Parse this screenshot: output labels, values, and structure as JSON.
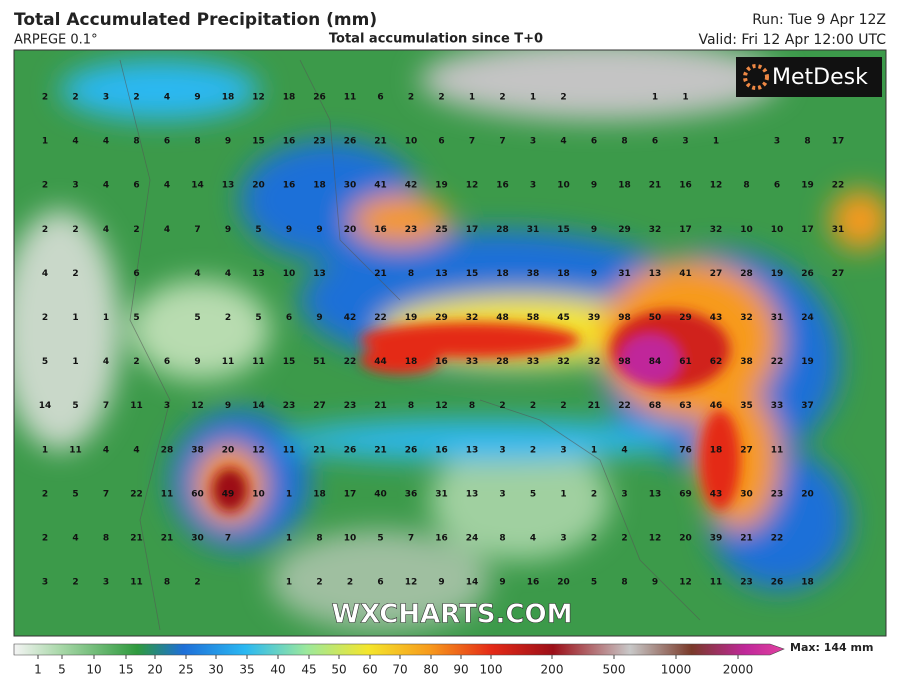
{
  "header": {
    "title": "Total Accumulated Precipitation (mm)",
    "model": "ARPEGE 0.1°",
    "subtitle": "Total accumulation since T+0",
    "run": "Run: Tue 9 Apr 12Z",
    "valid": "Valid: Fri 12 Apr 12:00 UTC"
  },
  "logo": "MetDesk",
  "watermark": "WXCHARTS.COM",
  "colorbar": {
    "labels": [
      1,
      5,
      10,
      15,
      20,
      25,
      30,
      35,
      40,
      45,
      50,
      60,
      70,
      80,
      90,
      100,
      200,
      500,
      1000,
      2000
    ],
    "max": "Max: 144 mm"
  },
  "grid": {
    "rows": [
      [
        2,
        2,
        3,
        2,
        4,
        9,
        18,
        12,
        18,
        26,
        11,
        6,
        2,
        2,
        1,
        2,
        1,
        2,
        null,
        null,
        1,
        1,
        null,
        null,
        null,
        null,
        null
      ],
      [
        1,
        4,
        4,
        8,
        6,
        8,
        9,
        15,
        16,
        23,
        26,
        21,
        10,
        6,
        7,
        7,
        3,
        4,
        6,
        8,
        6,
        3,
        1,
        null,
        3,
        8,
        17
      ],
      [
        2,
        3,
        4,
        6,
        4,
        14,
        13,
        20,
        16,
        18,
        30,
        41,
        42,
        19,
        12,
        16,
        3,
        10,
        9,
        18,
        21,
        16,
        12,
        8,
        6,
        19,
        22
      ],
      [
        2,
        2,
        4,
        2,
        4,
        7,
        9,
        5,
        9,
        9,
        20,
        16,
        23,
        25,
        17,
        28,
        31,
        15,
        9,
        29,
        32,
        17,
        32,
        10,
        10,
        17,
        31
      ],
      [
        4,
        2,
        null,
        6,
        null,
        4,
        4,
        13,
        10,
        13,
        null,
        21,
        8,
        13,
        15,
        18,
        38,
        18,
        9,
        31,
        13,
        41,
        27,
        28,
        19,
        26,
        27
      ],
      [
        2,
        1,
        1,
        5,
        null,
        5,
        2,
        5,
        6,
        9,
        42,
        22,
        19,
        29,
        32,
        48,
        58,
        45,
        39,
        98,
        50,
        29,
        43,
        32,
        31,
        24,
        null
      ],
      [
        5,
        1,
        4,
        2,
        6,
        9,
        11,
        11,
        15,
        51,
        22,
        44,
        18,
        16,
        33,
        28,
        33,
        32,
        32,
        98,
        84,
        61,
        62,
        38,
        22,
        19,
        null
      ],
      [
        14,
        5,
        7,
        11,
        3,
        12,
        9,
        14,
        23,
        27,
        23,
        21,
        8,
        12,
        8,
        2,
        2,
        2,
        21,
        22,
        68,
        63,
        46,
        35,
        33,
        37,
        null
      ],
      [
        1,
        11,
        4,
        4,
        28,
        38,
        20,
        12,
        11,
        21,
        26,
        21,
        26,
        16,
        13,
        3,
        2,
        3,
        1,
        4,
        null,
        76,
        18,
        27,
        11,
        null,
        null
      ],
      [
        2,
        5,
        7,
        22,
        11,
        60,
        49,
        10,
        1,
        18,
        17,
        40,
        36,
        31,
        13,
        3,
        5,
        1,
        2,
        3,
        13,
        69,
        43,
        30,
        23,
        20,
        null
      ],
      [
        2,
        4,
        8,
        21,
        21,
        30,
        7,
        null,
        1,
        8,
        10,
        5,
        7,
        16,
        24,
        8,
        4,
        3,
        2,
        2,
        12,
        20,
        39,
        21,
        22,
        null,
        null
      ],
      [
        3,
        2,
        3,
        11,
        8,
        2,
        null,
        null,
        1,
        2,
        2,
        6,
        12,
        9,
        14,
        9,
        16,
        20,
        5,
        8,
        9,
        12,
        11,
        23,
        26,
        18,
        null
      ]
    ]
  }
}
